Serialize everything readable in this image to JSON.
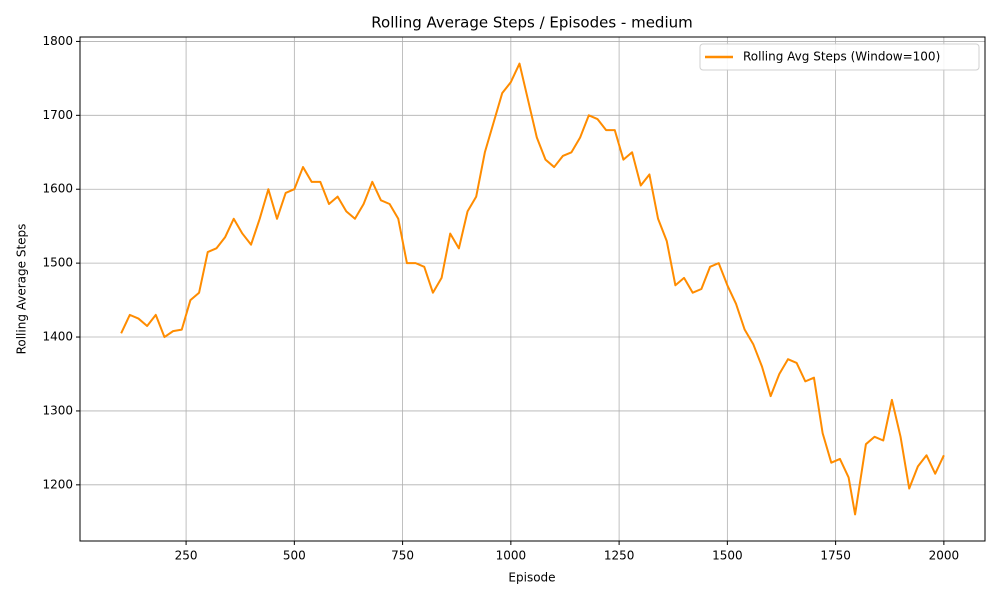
{
  "chart_data": {
    "type": "line",
    "title": "Rolling Average Steps / Episodes - medium",
    "xlabel": "Episode",
    "ylabel": "Rolling Average Steps",
    "x": [
      100,
      120,
      140,
      160,
      180,
      200,
      220,
      240,
      260,
      280,
      300,
      320,
      340,
      360,
      380,
      400,
      420,
      440,
      460,
      480,
      500,
      520,
      540,
      560,
      580,
      600,
      620,
      640,
      660,
      680,
      700,
      720,
      740,
      760,
      780,
      800,
      820,
      840,
      860,
      880,
      900,
      920,
      940,
      960,
      980,
      1000,
      1020,
      1040,
      1060,
      1080,
      1100,
      1120,
      1140,
      1160,
      1180,
      1200,
      1220,
      1240,
      1260,
      1280,
      1300,
      1320,
      1340,
      1360,
      1380,
      1400,
      1420,
      1440,
      1460,
      1480,
      1500,
      1520,
      1540,
      1560,
      1580,
      1600,
      1620,
      1640,
      1660,
      1680,
      1700,
      1720,
      1740,
      1760,
      1780,
      1795,
      1820,
      1840,
      1860,
      1880,
      1900,
      1920,
      1940,
      1960,
      1980,
      2000
    ],
    "series": [
      {
        "name": "Rolling Avg Steps (Window=100)",
        "color": "#ff8c00",
        "values": [
          1405,
          1430,
          1425,
          1415,
          1430,
          1400,
          1408,
          1410,
          1450,
          1460,
          1515,
          1520,
          1535,
          1560,
          1540,
          1525,
          1560,
          1600,
          1560,
          1595,
          1600,
          1630,
          1610,
          1610,
          1580,
          1590,
          1570,
          1560,
          1580,
          1610,
          1585,
          1580,
          1560,
          1500,
          1500,
          1495,
          1460,
          1480,
          1540,
          1520,
          1570,
          1590,
          1650,
          1690,
          1730,
          1745,
          1770,
          1720,
          1670,
          1640,
          1630,
          1645,
          1650,
          1670,
          1700,
          1695,
          1680,
          1680,
          1640,
          1650,
          1605,
          1620,
          1560,
          1530,
          1470,
          1480,
          1460,
          1465,
          1495,
          1500,
          1470,
          1445,
          1410,
          1390,
          1360,
          1320,
          1350,
          1370,
          1365,
          1340,
          1345,
          1270,
          1230,
          1235,
          1210,
          1160,
          1255,
          1265,
          1260,
          1315,
          1265,
          1195,
          1225,
          1240,
          1215,
          1240
        ]
      }
    ],
    "xlim": [
      5,
      2095
    ],
    "ylim": [
      1124,
      1806
    ],
    "xticks": [
      250,
      500,
      750,
      1000,
      1250,
      1500,
      1750,
      2000
    ],
    "yticks": [
      1200,
      1300,
      1400,
      1500,
      1600,
      1700,
      1800
    ],
    "grid": true,
    "legend": "upper right"
  }
}
